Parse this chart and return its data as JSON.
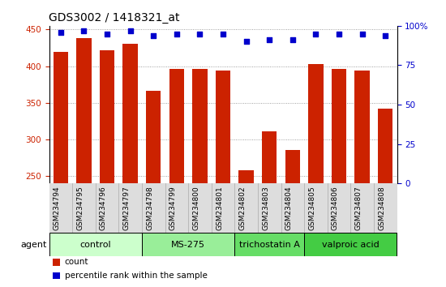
{
  "title": "GDS3002 / 1418321_at",
  "samples": [
    "GSM234794",
    "GSM234795",
    "GSM234796",
    "GSM234797",
    "GSM234798",
    "GSM234799",
    "GSM234800",
    "GSM234801",
    "GSM234802",
    "GSM234803",
    "GSM234804",
    "GSM234805",
    "GSM234806",
    "GSM234807",
    "GSM234808"
  ],
  "counts": [
    420,
    438,
    422,
    430,
    366,
    396,
    396,
    394,
    258,
    311,
    286,
    403,
    396,
    394,
    342
  ],
  "percentile_ranks": [
    96,
    97,
    95,
    97,
    94,
    95,
    95,
    95,
    90,
    91,
    91,
    95,
    95,
    95,
    94
  ],
  "groups": [
    {
      "label": "control",
      "start": 0,
      "end": 4,
      "color": "#ccffcc"
    },
    {
      "label": "MS-275",
      "start": 4,
      "end": 8,
      "color": "#99ee99"
    },
    {
      "label": "trichostatin A",
      "start": 8,
      "end": 11,
      "color": "#66dd66"
    },
    {
      "label": "valproic acid",
      "start": 11,
      "end": 15,
      "color": "#44cc44"
    }
  ],
  "bar_color": "#cc2200",
  "dot_color": "#0000cc",
  "ylim_left": [
    240,
    455
  ],
  "ylim_right": [
    0,
    100
  ],
  "yticks_left": [
    250,
    300,
    350,
    400,
    450
  ],
  "yticks_right": [
    0,
    25,
    50,
    75,
    100
  ],
  "ylabel_left_color": "#cc2200",
  "ylabel_right_color": "#0000cc",
  "grid_color": "#888888",
  "background_color": "#ffffff",
  "tick_bg_color": "#dddddd",
  "agent_label": "agent",
  "legend_items": [
    {
      "color": "#cc2200",
      "label": "count"
    },
    {
      "color": "#0000cc",
      "label": "percentile rank within the sample"
    }
  ]
}
